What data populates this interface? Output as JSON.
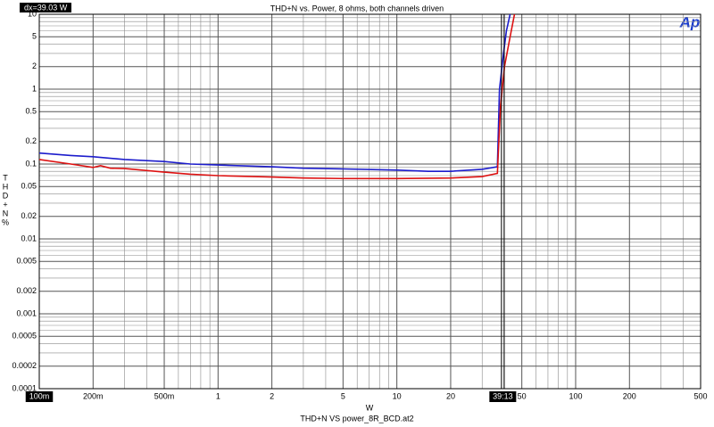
{
  "chart_data": {
    "type": "line",
    "title": "THD+N vs. Power, 8 ohms, both channels driven",
    "x_label": "W",
    "y_label": [
      "T",
      "H",
      "D",
      "+",
      "N",
      "%"
    ],
    "footer": "THD+N VS power_8R_BCD.at2",
    "readout": "dx=39.03  W",
    "logo": "Ap",
    "cursor": {
      "value": 39.13,
      "label": "39:13"
    },
    "xlog": true,
    "ylog": true,
    "grid": true,
    "xlim": [
      0.1,
      500
    ],
    "ylim": [
      0.0001,
      10
    ],
    "xticks": [
      {
        "value": 0.1,
        "label": "100m"
      },
      {
        "value": 0.2,
        "label": "200m"
      },
      {
        "value": 0.5,
        "label": "500m"
      },
      1,
      2,
      5,
      10,
      20,
      50,
      100,
      200,
      500
    ],
    "minor_xticks": [
      0.3,
      0.4,
      0.6,
      0.7,
      0.8,
      0.9,
      3,
      4,
      6,
      7,
      8,
      9,
      30,
      40,
      60,
      70,
      80,
      90,
      300,
      400
    ],
    "yticks": [
      10,
      5,
      2,
      1,
      0.5,
      0.2,
      0.1,
      0.05,
      0.02,
      0.01,
      0.005,
      0.002,
      0.001,
      0.0005,
      0.0002,
      0.0001
    ],
    "minor_yticks": [
      0.0003,
      0.0004,
      0.0006,
      0.0007,
      0.0008,
      0.0009,
      0.003,
      0.004,
      0.006,
      0.007,
      0.008,
      0.009,
      0.03,
      0.04,
      0.06,
      0.07,
      0.08,
      0.09,
      0.3,
      0.4,
      0.6,
      0.7,
      0.8,
      0.9,
      3,
      4,
      6,
      7,
      8,
      9
    ],
    "series": [
      {
        "color": "#1c1ccc",
        "x": [
          0.1,
          0.15,
          0.2,
          0.3,
          0.5,
          0.7,
          1,
          2,
          3,
          5,
          10,
          15,
          20,
          30,
          36.5,
          37.5,
          39.5,
          41,
          43
        ],
        "values": [
          0.14,
          0.13,
          0.125,
          0.115,
          0.108,
          0.1,
          0.097,
          0.092,
          0.088,
          0.086,
          0.083,
          0.08,
          0.08,
          0.085,
          0.092,
          1,
          3,
          6,
          10
        ]
      },
      {
        "color": "#dd1111",
        "x": [
          0.1,
          0.15,
          0.2,
          0.22,
          0.25,
          0.3,
          0.5,
          0.7,
          1,
          2,
          3,
          5,
          10,
          20,
          30,
          36.5,
          38,
          40,
          43,
          45.5
        ],
        "values": [
          0.115,
          0.1,
          0.09,
          0.095,
          0.088,
          0.087,
          0.078,
          0.073,
          0.07,
          0.067,
          0.065,
          0.064,
          0.064,
          0.065,
          0.068,
          0.075,
          0.6,
          2,
          5,
          10
        ]
      }
    ]
  }
}
